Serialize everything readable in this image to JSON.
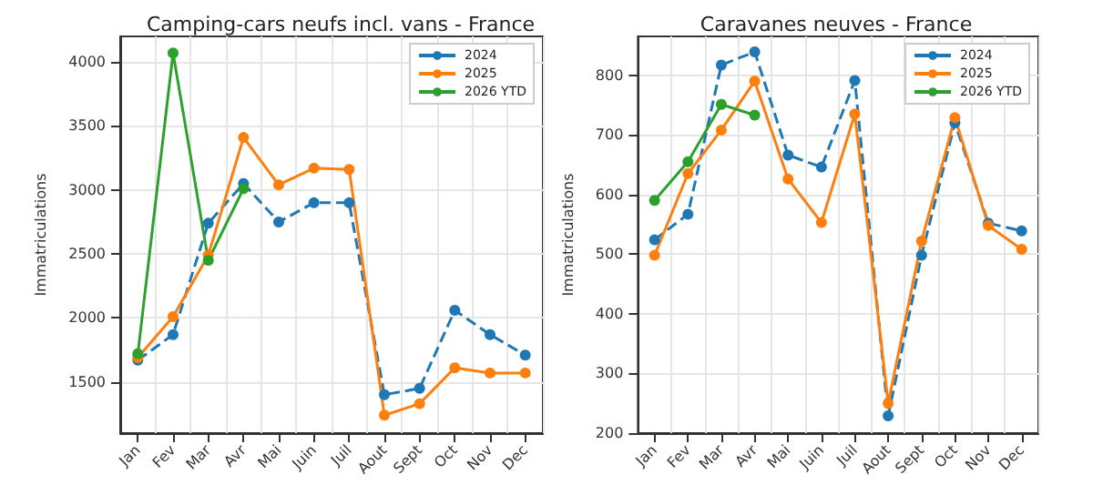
{
  "chart_data": [
    {
      "type": "line",
      "title": "Camping-cars neufs incl. vans - France",
      "ylabel": "Immatriculations",
      "categories": [
        "Jan",
        "Fev",
        "Mar",
        "Avr",
        "Mai",
        "Juin",
        "Juil",
        "Aout",
        "Sept",
        "Oct",
        "Nov",
        "Dec"
      ],
      "ylim": [
        1100,
        4200
      ],
      "yticks": [
        1500,
        2000,
        2500,
        3000,
        3500,
        4000
      ],
      "grid": true,
      "legend": "top right",
      "marker": "circle",
      "series": [
        {
          "name": "2024",
          "color": "#1f77b4",
          "line_style": "dashed",
          "values": [
            1670,
            1870,
            2740,
            3050,
            2750,
            2900,
            2900,
            1400,
            1450,
            2060,
            1870,
            1710
          ]
        },
        {
          "name": "2025",
          "color": "#ff7f0e",
          "line_style": "solid",
          "values": [
            1690,
            2010,
            2490,
            3410,
            3040,
            3170,
            3160,
            1240,
            1330,
            1610,
            1570,
            1570
          ]
        },
        {
          "name": "2026 YTD",
          "color": "#2ca02c",
          "line_style": "solid",
          "values": [
            1720,
            4070,
            2450,
            3010,
            null,
            null,
            null,
            null,
            null,
            null,
            null,
            null
          ]
        }
      ]
    },
    {
      "type": "line",
      "title": "Caravanes neuves - France",
      "ylabel": "Immatriculations",
      "categories": [
        "Jan",
        "Fev",
        "Mar",
        "Avr",
        "Mai",
        "Juin",
        "Juil",
        "Aout",
        "Sept",
        "Oct",
        "Nov",
        "Dec"
      ],
      "ylim": [
        200,
        865
      ],
      "yticks": [
        200,
        300,
        400,
        500,
        600,
        700,
        800
      ],
      "grid": true,
      "legend": "top right",
      "marker": "circle",
      "series": [
        {
          "name": "2024",
          "color": "#1f77b4",
          "line_style": "dashed",
          "values": [
            524,
            567,
            817,
            839,
            666,
            646,
            791,
            229,
            498,
            720,
            552,
            539
          ]
        },
        {
          "name": "2025",
          "color": "#ff7f0e",
          "line_style": "solid",
          "values": [
            498,
            635,
            708,
            790,
            626,
            553,
            735,
            250,
            522,
            729,
            548,
            508
          ]
        },
        {
          "name": "2026 YTD",
          "color": "#2ca02c",
          "line_style": "solid",
          "values": [
            590,
            655,
            751,
            733,
            null,
            null,
            null,
            null,
            null,
            null,
            null,
            null
          ]
        }
      ]
    }
  ]
}
